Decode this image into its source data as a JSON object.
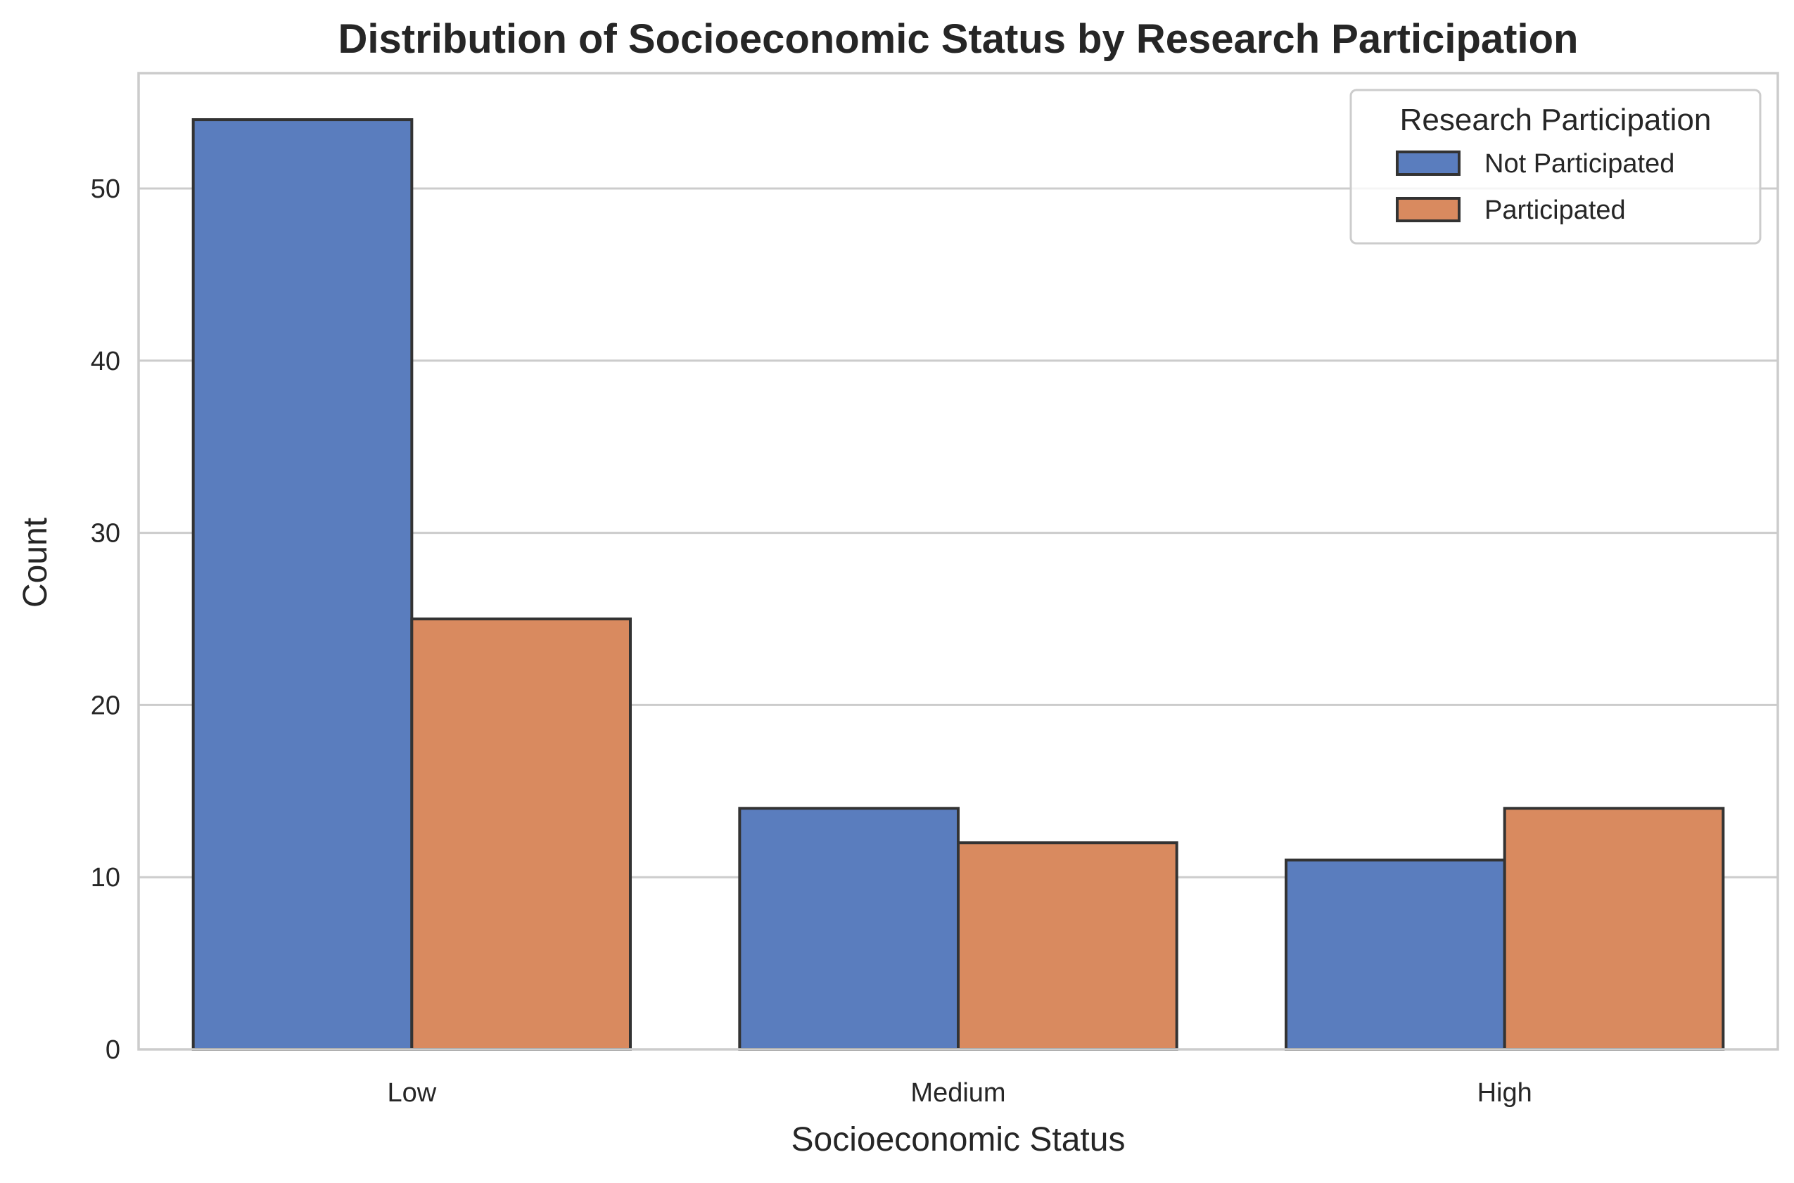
{
  "chart_data": {
    "type": "bar",
    "title": "Distribution of Socioeconomic Status by Research Participation",
    "xlabel": "Socioeconomic Status",
    "ylabel": "Count",
    "categories": [
      "Low",
      "Medium",
      "High"
    ],
    "series": [
      {
        "name": "Not Participated",
        "values": [
          54,
          14,
          11
        ],
        "color": "#5a7dbe"
      },
      {
        "name": "Participated",
        "values": [
          25,
          12,
          14
        ],
        "color": "#d98a5f"
      }
    ],
    "ylim": [
      0,
      56.7
    ],
    "yticks": [
      0,
      10,
      20,
      30,
      40,
      50
    ],
    "grid": "horizontal",
    "legend": {
      "title": "Research Participation",
      "placement": "top-right"
    },
    "colors": {
      "grid": "#cccccc",
      "bar_edge": "#333333",
      "text": "#262626"
    }
  }
}
